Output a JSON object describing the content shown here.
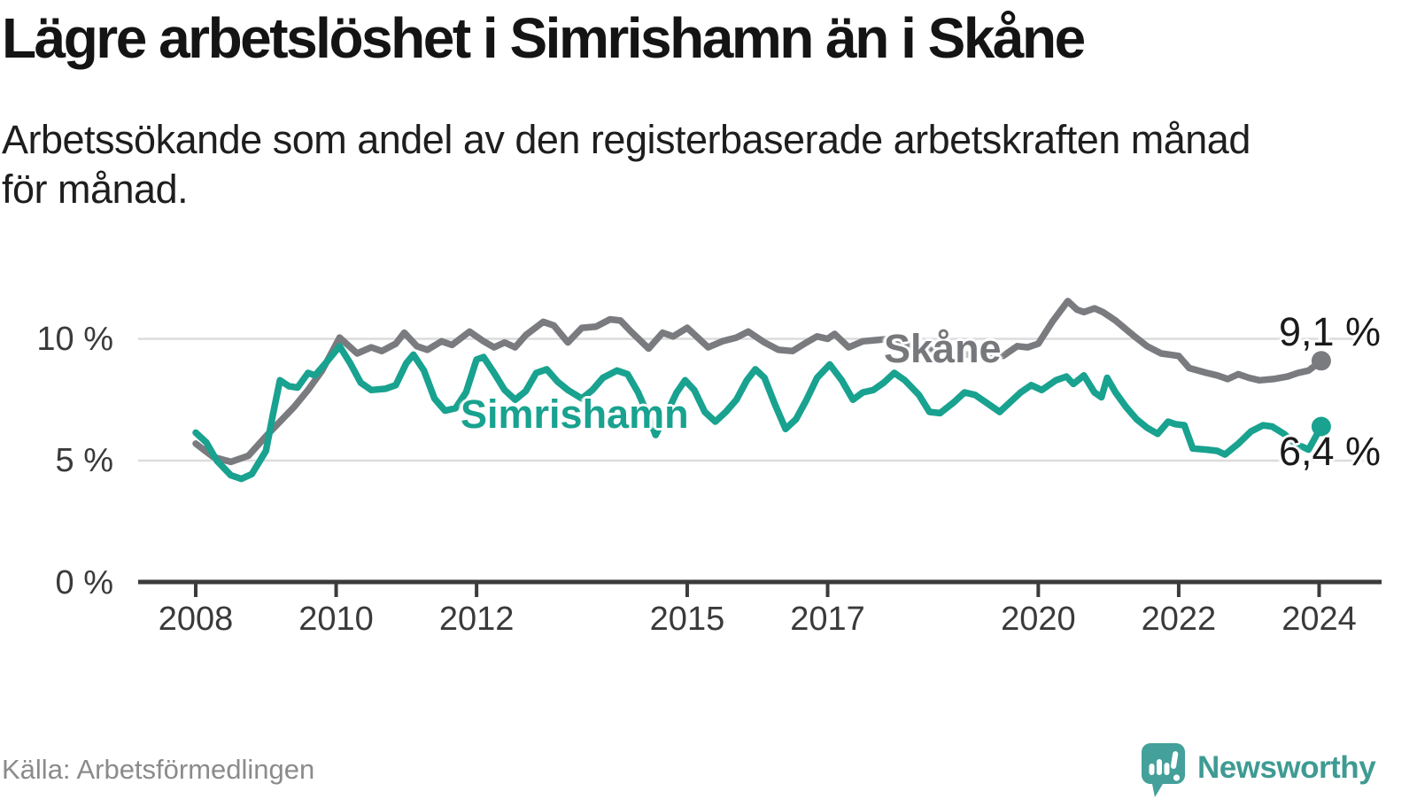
{
  "header": {
    "title": "Lägre arbetslöshet i Simrishamn än i Skåne",
    "subtitle_line1": "Arbetssökande som andel av den registerbaserade arbetskraften månad",
    "subtitle_line2": "för månad."
  },
  "footer": {
    "source": "Källa: Arbetsförmedlingen",
    "brand": "Newsworthy",
    "brand_color": "#3E9B93"
  },
  "chart_data": {
    "type": "line",
    "unit": "percent of registered labour force",
    "grid": "horizontal",
    "x_axis": {
      "ticks": [
        "2008",
        "2010",
        "2012",
        "2015",
        "2017",
        "2020",
        "2022",
        "2024"
      ],
      "range_years": [
        2008.0,
        2024.1
      ]
    },
    "y_axis": {
      "ticks": [
        {
          "label": "10 %",
          "value": 10
        },
        {
          "label": "5 %",
          "value": 5
        },
        {
          "label": "0 %",
          "value": 0
        }
      ],
      "range": [
        0,
        12.3
      ]
    },
    "series": [
      {
        "name": "Skåne",
        "color": "#7A7B7F",
        "end_label": "9,1 %",
        "end_value": 9.1,
        "points": [
          [
            2008.0,
            5.7
          ],
          [
            2008.25,
            5.15
          ],
          [
            2008.5,
            4.95
          ],
          [
            2008.75,
            5.2
          ],
          [
            2009.0,
            6.0
          ],
          [
            2009.2,
            6.6
          ],
          [
            2009.4,
            7.2
          ],
          [
            2009.6,
            7.9
          ],
          [
            2009.8,
            8.7
          ],
          [
            2010.05,
            10.05
          ],
          [
            2010.3,
            9.4
          ],
          [
            2010.5,
            9.65
          ],
          [
            2010.65,
            9.5
          ],
          [
            2010.85,
            9.8
          ],
          [
            2010.97,
            10.25
          ],
          [
            2011.15,
            9.7
          ],
          [
            2011.3,
            9.55
          ],
          [
            2011.5,
            9.9
          ],
          [
            2011.65,
            9.75
          ],
          [
            2011.9,
            10.3
          ],
          [
            2012.1,
            9.9
          ],
          [
            2012.25,
            9.65
          ],
          [
            2012.4,
            9.85
          ],
          [
            2012.55,
            9.65
          ],
          [
            2012.7,
            10.15
          ],
          [
            2012.95,
            10.7
          ],
          [
            2013.1,
            10.55
          ],
          [
            2013.3,
            9.85
          ],
          [
            2013.5,
            10.45
          ],
          [
            2013.7,
            10.5
          ],
          [
            2013.9,
            10.8
          ],
          [
            2014.05,
            10.75
          ],
          [
            2014.2,
            10.3
          ],
          [
            2014.45,
            9.6
          ],
          [
            2014.65,
            10.25
          ],
          [
            2014.8,
            10.1
          ],
          [
            2015.0,
            10.45
          ],
          [
            2015.3,
            9.65
          ],
          [
            2015.5,
            9.9
          ],
          [
            2015.7,
            10.05
          ],
          [
            2015.87,
            10.3
          ],
          [
            2016.1,
            9.85
          ],
          [
            2016.3,
            9.55
          ],
          [
            2016.5,
            9.5
          ],
          [
            2016.7,
            9.85
          ],
          [
            2016.85,
            10.1
          ],
          [
            2017.0,
            10.0
          ],
          [
            2017.1,
            10.2
          ],
          [
            2017.3,
            9.65
          ],
          [
            2017.5,
            9.9
          ],
          [
            2017.7,
            9.95
          ],
          [
            2017.9,
            10.0
          ],
          [
            2018.2,
            9.75
          ],
          [
            2018.6,
            9.5
          ],
          [
            2019.0,
            9.35
          ],
          [
            2019.5,
            9.3
          ],
          [
            2019.7,
            9.7
          ],
          [
            2019.85,
            9.65
          ],
          [
            2020.0,
            9.8
          ],
          [
            2020.2,
            10.7
          ],
          [
            2020.42,
            11.55
          ],
          [
            2020.55,
            11.2
          ],
          [
            2020.65,
            11.1
          ],
          [
            2020.8,
            11.25
          ],
          [
            2020.92,
            11.1
          ],
          [
            2021.1,
            10.75
          ],
          [
            2021.35,
            10.15
          ],
          [
            2021.55,
            9.7
          ],
          [
            2021.75,
            9.4
          ],
          [
            2022.0,
            9.3
          ],
          [
            2022.15,
            8.8
          ],
          [
            2022.4,
            8.6
          ],
          [
            2022.55,
            8.5
          ],
          [
            2022.7,
            8.35
          ],
          [
            2022.85,
            8.55
          ],
          [
            2023.0,
            8.4
          ],
          [
            2023.15,
            8.3
          ],
          [
            2023.35,
            8.35
          ],
          [
            2023.55,
            8.45
          ],
          [
            2023.7,
            8.6
          ],
          [
            2023.85,
            8.7
          ],
          [
            2024.03,
            9.1
          ]
        ]
      },
      {
        "name": "Simrishamn",
        "color": "#18A28F",
        "end_label": "6,4 %",
        "end_value": 6.4,
        "points": [
          [
            2008.0,
            6.15
          ],
          [
            2008.15,
            5.75
          ],
          [
            2008.3,
            5.0
          ],
          [
            2008.5,
            4.4
          ],
          [
            2008.65,
            4.25
          ],
          [
            2008.8,
            4.45
          ],
          [
            2009.0,
            5.4
          ],
          [
            2009.1,
            6.9
          ],
          [
            2009.2,
            8.3
          ],
          [
            2009.33,
            8.05
          ],
          [
            2009.45,
            8.0
          ],
          [
            2009.6,
            8.6
          ],
          [
            2009.7,
            8.5
          ],
          [
            2009.85,
            9.0
          ],
          [
            2010.05,
            9.7
          ],
          [
            2010.2,
            9.0
          ],
          [
            2010.35,
            8.2
          ],
          [
            2010.5,
            7.9
          ],
          [
            2010.7,
            7.95
          ],
          [
            2010.85,
            8.1
          ],
          [
            2011.0,
            9.0
          ],
          [
            2011.1,
            9.35
          ],
          [
            2011.25,
            8.7
          ],
          [
            2011.4,
            7.55
          ],
          [
            2011.55,
            7.05
          ],
          [
            2011.7,
            7.15
          ],
          [
            2011.85,
            7.8
          ],
          [
            2012.0,
            9.15
          ],
          [
            2012.1,
            9.25
          ],
          [
            2012.25,
            8.6
          ],
          [
            2012.4,
            7.9
          ],
          [
            2012.55,
            7.5
          ],
          [
            2012.7,
            7.85
          ],
          [
            2012.85,
            8.6
          ],
          [
            2013.0,
            8.75
          ],
          [
            2013.15,
            8.25
          ],
          [
            2013.3,
            7.9
          ],
          [
            2013.5,
            7.55
          ],
          [
            2013.65,
            7.9
          ],
          [
            2013.8,
            8.4
          ],
          [
            2014.0,
            8.7
          ],
          [
            2014.15,
            8.55
          ],
          [
            2014.3,
            7.8
          ],
          [
            2014.45,
            6.8
          ],
          [
            2014.55,
            6.05
          ],
          [
            2014.7,
            6.9
          ],
          [
            2014.85,
            7.8
          ],
          [
            2014.97,
            8.3
          ],
          [
            2015.1,
            7.9
          ],
          [
            2015.25,
            7.0
          ],
          [
            2015.4,
            6.6
          ],
          [
            2015.55,
            7.0
          ],
          [
            2015.7,
            7.5
          ],
          [
            2015.85,
            8.3
          ],
          [
            2015.97,
            8.75
          ],
          [
            2016.1,
            8.4
          ],
          [
            2016.25,
            7.3
          ],
          [
            2016.4,
            6.3
          ],
          [
            2016.55,
            6.7
          ],
          [
            2016.7,
            7.5
          ],
          [
            2016.85,
            8.4
          ],
          [
            2017.03,
            8.95
          ],
          [
            2017.2,
            8.3
          ],
          [
            2017.36,
            7.5
          ],
          [
            2017.5,
            7.8
          ],
          [
            2017.65,
            7.9
          ],
          [
            2017.8,
            8.2
          ],
          [
            2017.95,
            8.6
          ],
          [
            2018.1,
            8.3
          ],
          [
            2018.3,
            7.7
          ],
          [
            2018.45,
            7.0
          ],
          [
            2018.6,
            6.95
          ],
          [
            2018.8,
            7.4
          ],
          [
            2018.95,
            7.8
          ],
          [
            2019.1,
            7.7
          ],
          [
            2019.25,
            7.4
          ],
          [
            2019.45,
            7.0
          ],
          [
            2019.6,
            7.4
          ],
          [
            2019.75,
            7.8
          ],
          [
            2019.9,
            8.1
          ],
          [
            2020.05,
            7.9
          ],
          [
            2020.25,
            8.3
          ],
          [
            2020.4,
            8.45
          ],
          [
            2020.5,
            8.15
          ],
          [
            2020.65,
            8.5
          ],
          [
            2020.8,
            7.8
          ],
          [
            2020.9,
            7.6
          ],
          [
            2020.98,
            8.4
          ],
          [
            2021.1,
            7.8
          ],
          [
            2021.25,
            7.2
          ],
          [
            2021.4,
            6.7
          ],
          [
            2021.55,
            6.35
          ],
          [
            2021.7,
            6.1
          ],
          [
            2021.85,
            6.6
          ],
          [
            2021.95,
            6.5
          ],
          [
            2022.08,
            6.45
          ],
          [
            2022.2,
            5.5
          ],
          [
            2022.4,
            5.45
          ],
          [
            2022.55,
            5.4
          ],
          [
            2022.66,
            5.25
          ],
          [
            2022.85,
            5.7
          ],
          [
            2023.03,
            6.2
          ],
          [
            2023.2,
            6.45
          ],
          [
            2023.33,
            6.4
          ],
          [
            2023.5,
            6.1
          ],
          [
            2023.66,
            5.7
          ],
          [
            2023.85,
            5.45
          ],
          [
            2024.03,
            6.4
          ]
        ]
      }
    ]
  }
}
